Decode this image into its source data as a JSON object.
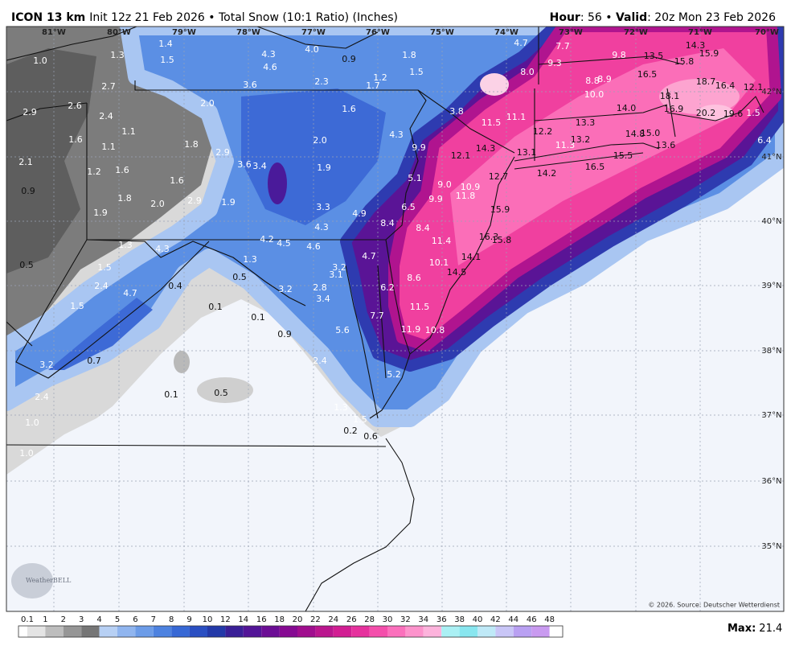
{
  "header": {
    "model": "ICON 13 km",
    "description": "Init 12z 21 Feb 2026 • Total Snow (10:1 Ratio) (Inches)",
    "hour_label": "Hour",
    "hour_text": ": 56 • ",
    "valid_label": "Valid",
    "valid_text": ": 20z Mon 23 Feb 2026"
  },
  "longitudes": [
    "81°W",
    "80°W",
    "79°W",
    "78°W",
    "77°W",
    "76°W",
    "75°W",
    "74°W",
    "73°W",
    "72°W",
    "71°W",
    "70°W"
  ],
  "latitudes": [
    "42°N",
    "41°N",
    "40°N",
    "39°N",
    "38°N",
    "37°N",
    "36°N",
    "35°N"
  ],
  "snow_labels": [
    "1.0",
    "1.3",
    "1.4",
    "1.5",
    "4.3",
    "4.0",
    "4.6",
    "0.9",
    "1.8",
    "1.5",
    "1.2",
    "1.7",
    "3.6",
    "2.3",
    "2.7",
    "2.0",
    "2.9",
    "2.6",
    "2.4",
    "1.6",
    "3.8",
    "4.7",
    "7.7",
    "9.8",
    "13.5",
    "14.3",
    "15.9",
    "15.8",
    "9.3",
    "8.0",
    "16.5",
    "8.8",
    "8.9",
    "18.7",
    "16.4",
    "12.1",
    "10.0",
    "18.1",
    "14.0",
    "16.9",
    "20.2",
    "19.6",
    "1.5",
    "11.5",
    "11.1",
    "13.3",
    "12.2",
    "1.6",
    "1.1",
    "1.1",
    "1.8",
    "2.9",
    "2.0",
    "4.3",
    "9.9",
    "14.3",
    "13.1",
    "11.3",
    "13.2",
    "14.8",
    "15.0",
    "13.6",
    "6.4",
    "12.1",
    "15.5",
    "2.1",
    "3.6",
    "3.4",
    "1.9",
    "1.2",
    "1.6",
    "1.6",
    "5.1",
    "9.0",
    "10.9",
    "12.7",
    "14.2",
    "16.5",
    "0.9",
    "1.8",
    "2.9",
    "1.9",
    "2.0",
    "9.9",
    "11.8",
    "6.5",
    "3.3",
    "4.9",
    "15.9",
    "1.9",
    "8.4",
    "4.3",
    "8.4",
    "16.3",
    "15.8",
    "11.4",
    "4.2",
    "4.5",
    "4.6",
    "1.3",
    "4.3",
    "4.7",
    "14.1",
    "10.1",
    "0.5",
    "1.5",
    "1.3",
    "3.2",
    "3.1",
    "0.5",
    "14.5",
    "8.6",
    "2.4",
    "0.4",
    "3.2",
    "2.8",
    "6.2",
    "4.7",
    "3.4",
    "1.5",
    "0.1",
    "0.1",
    "11.5",
    "7.7",
    "11.9",
    "10.8",
    "0.9",
    "5.6",
    "0.7",
    "3.2",
    "2.4",
    "5.2",
    "2.4",
    "0.1",
    "0.5",
    "1.3",
    "1.5",
    "1.0",
    "0.2",
    "0.6",
    "1.0"
  ],
  "legend": {
    "labels": [
      0.1,
      1,
      2,
      3,
      4,
      5,
      6,
      7,
      8,
      9,
      10,
      12,
      14,
      16,
      18,
      20,
      22,
      24,
      26,
      28,
      30,
      32,
      34,
      36,
      38,
      40,
      42,
      44,
      46,
      48
    ],
    "colors": [
      "#ffffff",
      "#e4e4e4",
      "#bdbdbd",
      "#969696",
      "#767676",
      "#b7d0f4",
      "#90b5ef",
      "#6c9ce8",
      "#4d82e0",
      "#3768d5",
      "#2a4fc2",
      "#2339a8",
      "#3a1f97",
      "#531597",
      "#6c0e95",
      "#860a92",
      "#a00e8e",
      "#ba168e",
      "#d21e93",
      "#e6319d",
      "#f44eab",
      "#fb70bc",
      "#fd93cc",
      "#fdb3dc",
      "#aaf0f4",
      "#88e6ef",
      "#bfe9f7",
      "#c9c6f7",
      "#b9a0f2",
      "#c99af0"
    ]
  },
  "max_label": "Max:",
  "max_value": "21.4",
  "copyright": "© 2026. Source: Deutscher Wetterdienst",
  "logo": "WeatherBELL"
}
